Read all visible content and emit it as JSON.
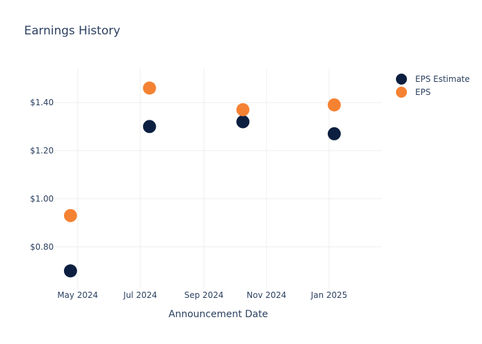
{
  "chart_data": {
    "type": "scatter",
    "title": "Earnings History",
    "xlabel": "Announcement Date",
    "ylabel": "",
    "x_ticks": [
      {
        "date": "2024-05-01",
        "label": "May 2024"
      },
      {
        "date": "2024-07-01",
        "label": "Jul 2024"
      },
      {
        "date": "2024-09-01",
        "label": "Sep 2024"
      },
      {
        "date": "2024-11-01",
        "label": "Nov 2024"
      },
      {
        "date": "2025-01-01",
        "label": "Jan 2025"
      }
    ],
    "y_ticks": [
      {
        "value": 0.8,
        "label": "$0.80"
      },
      {
        "value": 1.0,
        "label": "$1.00"
      },
      {
        "value": 1.2,
        "label": "$1.20"
      },
      {
        "value": 1.4,
        "label": "$1.40"
      }
    ],
    "xlim": [
      "2024-04-09",
      "2025-02-21"
    ],
    "ylim": [
      0.625,
      1.54
    ],
    "grid": true,
    "legend_position": "top-right",
    "series": [
      {
        "name": "EPS Estimate",
        "color": "#0c1f40",
        "points": [
          {
            "x": "2024-04-24",
            "y": 0.7
          },
          {
            "x": "2024-07-10",
            "y": 1.3
          },
          {
            "x": "2024-10-09",
            "y": 1.32
          },
          {
            "x": "2025-01-06",
            "y": 1.27
          }
        ]
      },
      {
        "name": "EPS",
        "color": "#f58233",
        "points": [
          {
            "x": "2024-04-24",
            "y": 0.93
          },
          {
            "x": "2024-07-10",
            "y": 1.46
          },
          {
            "x": "2024-10-09",
            "y": 1.37
          },
          {
            "x": "2025-01-06",
            "y": 1.39
          }
        ]
      }
    ]
  }
}
